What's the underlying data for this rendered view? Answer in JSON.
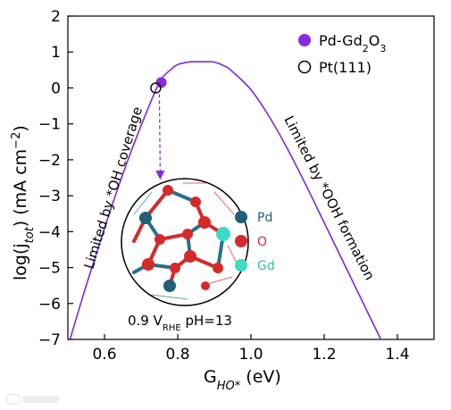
{
  "chart_data": {
    "type": "line",
    "xlabel_main": "G",
    "xlabel_sub": "HO*",
    "xlabel_unit": " (eV)",
    "ylabel_pre": "log(j",
    "ylabel_sub": "tot",
    "ylabel_post": ") (mA cm",
    "ylabel_sup": "−2",
    "ylabel_end": ")",
    "xlim": [
      0.5,
      1.5
    ],
    "ylim": [
      -7,
      2
    ],
    "xticks": [
      "0.6",
      "0.8",
      "1.0",
      "1.2",
      "1.4"
    ],
    "xtick_values": [
      0.6,
      0.8,
      1.0,
      1.2,
      1.4
    ],
    "yticks": [
      "2",
      "1",
      "0",
      "−1",
      "−2",
      "−3",
      "−4",
      "−5",
      "−6",
      "−7"
    ],
    "ytick_values": [
      2,
      1,
      0,
      -1,
      -2,
      -3,
      -4,
      -5,
      -6,
      -7
    ],
    "series": [
      {
        "line_color": "#7a2bd6",
        "x": [
          0.5,
          0.55,
          0.6,
          0.65,
          0.7,
          0.75,
          0.78,
          0.8,
          0.83,
          0.85,
          0.88,
          0.9,
          0.93,
          0.95,
          1.0,
          1.05,
          1.1,
          1.15,
          1.2,
          1.25,
          1.3,
          1.35,
          1.4
        ],
        "y": [
          -7.2,
          -5.5,
          -3.9,
          -2.4,
          -1.05,
          0.15,
          0.5,
          0.65,
          0.72,
          0.73,
          0.73,
          0.72,
          0.6,
          0.45,
          -0.05,
          -0.8,
          -1.7,
          -2.7,
          -3.75,
          -4.8,
          -5.85,
          -6.9,
          -7.9
        ]
      }
    ],
    "points": [
      {
        "name": "Pd-Gd2O3",
        "x": 0.755,
        "y": 0.15,
        "style": "filled",
        "color": "#8a2be2"
      },
      {
        "name": "Pt(111)",
        "x": 0.74,
        "y": 0.0,
        "style": "open",
        "color": "#000000"
      }
    ],
    "legend": {
      "placement": "top-right",
      "entries": [
        {
          "pre": "Pd-Gd",
          "sub1": "2",
          "mid": "O",
          "sub2": "3",
          "marker": "filled",
          "color": "#8a2be2"
        },
        {
          "pre": "Pt(111)",
          "sub1": "",
          "mid": "",
          "sub2": "",
          "marker": "open",
          "color": "#000000"
        }
      ]
    },
    "annotations": {
      "left": "Limited by *OH coverage",
      "right": "Limited by *OOH formation",
      "condition_pre": "0.9 V",
      "condition_sub": "RHE",
      "condition_post": " pH=13"
    },
    "inset_legend": [
      {
        "label": "Pd",
        "color": "#1f5f7a",
        "text_color": "#1f5f7a"
      },
      {
        "label": "O",
        "color": "#d42a2a",
        "text_color": "#d42a2a"
      },
      {
        "label": "Gd",
        "color": "#3fd9c4",
        "text_color": "#2fbfae"
      }
    ]
  }
}
